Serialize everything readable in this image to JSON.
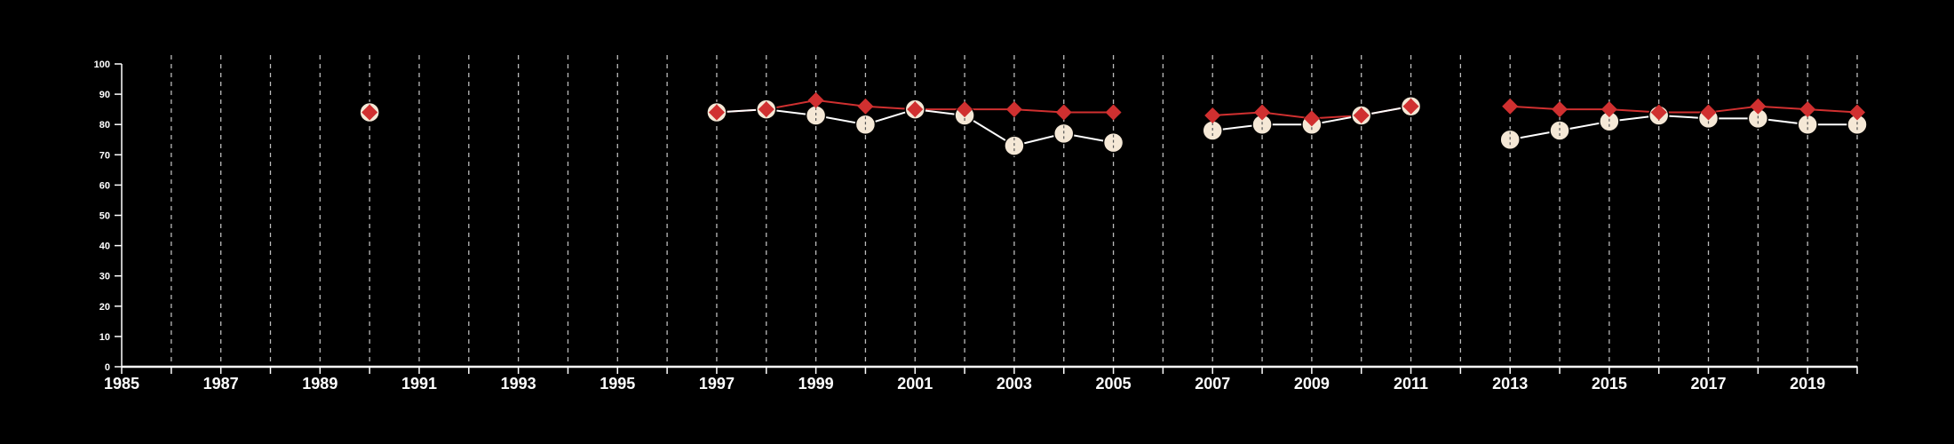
{
  "chart_data": {
    "type": "line",
    "title": "",
    "xlabel": "",
    "ylabel": "",
    "xlim": [
      1985,
      2020
    ],
    "ylim": [
      0,
      100
    ],
    "yticks": [
      0,
      10,
      20,
      30,
      40,
      50,
      60,
      70,
      80,
      90,
      100
    ],
    "xtick_labels": [
      "1985",
      "1987",
      "1989",
      "1991",
      "1993",
      "1995",
      "1997",
      "1999",
      "2001",
      "2003",
      "2005",
      "2007",
      "2009",
      "2011",
      "2013",
      "2015",
      "2017",
      "2019"
    ],
    "xtick_values": [
      1985,
      1987,
      1989,
      1991,
      1993,
      1995,
      1997,
      1999,
      2001,
      2003,
      2005,
      2007,
      2009,
      2011,
      2013,
      2015,
      2017,
      2019
    ],
    "grid": "vertical dashed at each year",
    "background_color": "#000000",
    "axis_color": "#ffffff",
    "grid_color": "#bbbbbb",
    "series": [
      {
        "marker": "circle",
        "color": "#f5e8d6",
        "line_color": "#ffffff",
        "x": [
          1990,
          1997,
          1998,
          1999,
          2000,
          2001,
          2002,
          2003,
          2004,
          2005,
          2007,
          2008,
          2009,
          2010,
          2011,
          2013,
          2014,
          2015,
          2016,
          2017,
          2018,
          2019,
          2020
        ],
        "values": [
          84,
          84,
          85,
          83,
          80,
          85,
          83,
          73,
          77,
          74,
          78,
          80,
          80,
          83,
          86,
          75,
          78,
          81,
          83,
          82,
          82,
          80,
          80
        ]
      },
      {
        "marker": "diamond",
        "color": "#d03030",
        "line_color": "#d03030",
        "x": [
          1990,
          1997,
          1998,
          1999,
          2000,
          2001,
          2002,
          2003,
          2004,
          2005,
          2007,
          2008,
          2009,
          2010,
          2011,
          2013,
          2014,
          2015,
          2016,
          2017,
          2018,
          2019,
          2020
        ],
        "values": [
          84,
          84,
          85,
          88,
          86,
          85,
          85,
          85,
          84,
          84,
          83,
          84,
          82,
          83,
          86,
          86,
          85,
          85,
          84,
          84,
          86,
          85,
          84
        ]
      }
    ]
  }
}
